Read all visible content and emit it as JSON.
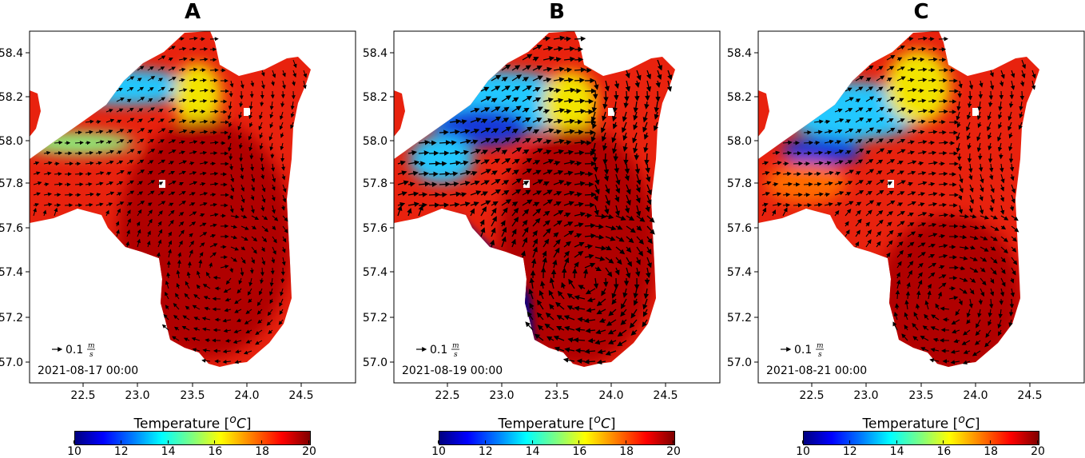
{
  "figure": {
    "colors": {
      "water_warm": "#b00000",
      "water_red": "#e8220e",
      "water_orange": "#ff6a00",
      "water_yellow": "#f2e400",
      "water_green": "#8af07a",
      "water_cyan": "#24c8ff",
      "water_blue": "#1838d8",
      "water_navy": "#00008a",
      "land": "#ffffff",
      "arrow": "#000000"
    },
    "y_ticks": [
      "57.0",
      "57.2",
      "57.4",
      "57.6",
      "57.8",
      "58.0",
      "58.2",
      "58.4"
    ],
    "x_ticks": [
      "22.5",
      "23.0",
      "23.5",
      "24.0",
      "24.5"
    ],
    "scale_arrow_label": "0.1",
    "scale_unit_num": "m",
    "scale_unit_den": "s",
    "colorbar": {
      "title_prefix": "Temperature [",
      "title_sup": "o",
      "title_unit": "C",
      "title_suffix": "]",
      "ticks": [
        "10",
        "12",
        "14",
        "16",
        "18",
        "20"
      ],
      "range": [
        10,
        20
      ],
      "colormap": "jet"
    },
    "panels": [
      {
        "letter": "A",
        "date": "2021-08-17 00:00"
      },
      {
        "letter": "B",
        "date": "2021-08-19 00:00"
      },
      {
        "letter": "C",
        "date": "2021-08-21 00:00"
      }
    ]
  }
}
